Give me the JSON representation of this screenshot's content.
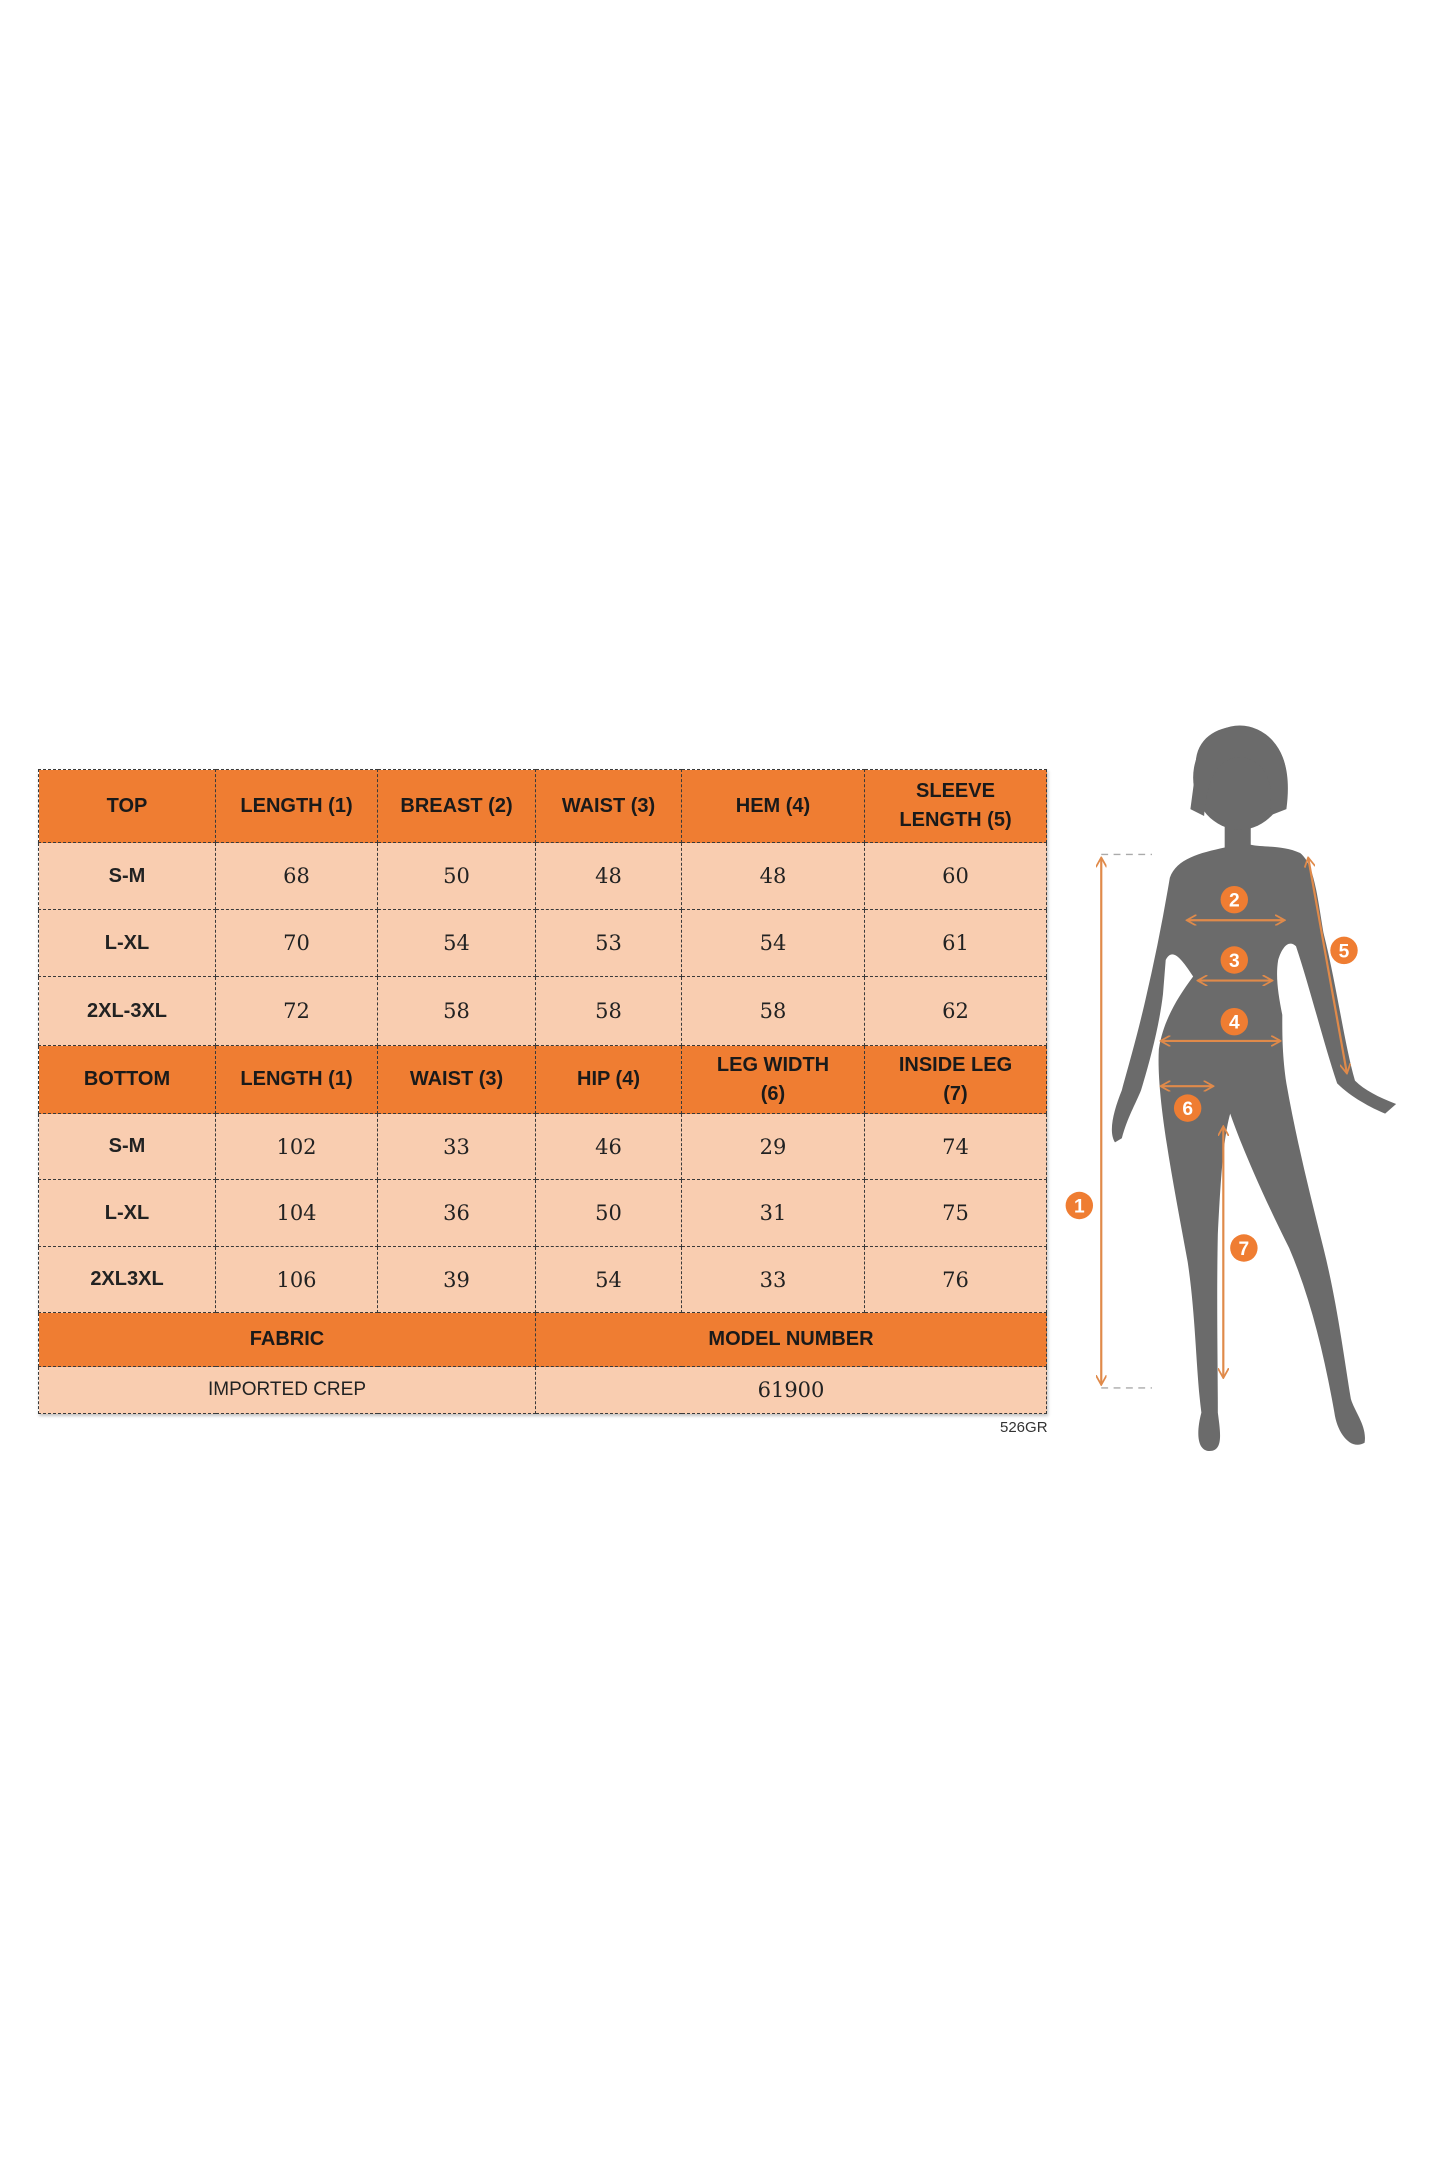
{
  "top_table": {
    "headers": [
      "TOP",
      "LENGTH (1)",
      "BREAST (2)",
      "WAIST (3)",
      "HEM (4)",
      "SLEEVE LENGTH (5)"
    ],
    "rows": [
      [
        "S-M",
        "68",
        "50",
        "48",
        "48",
        "60"
      ],
      [
        "L-XL",
        "70",
        "54",
        "53",
        "54",
        "61"
      ],
      [
        "2XL-3XL",
        "72",
        "58",
        "58",
        "58",
        "62"
      ]
    ]
  },
  "bottom_table": {
    "headers": [
      "BOTTOM",
      "LENGTH (1)",
      "WAIST (3)",
      "HIP (4)",
      "LEG WIDTH (6)",
      "INSIDE LEG (7)"
    ],
    "rows": [
      [
        "S-M",
        "102",
        "33",
        "46",
        "29",
        "74"
      ],
      [
        "L-XL",
        "104",
        "36",
        "50",
        "31",
        "75"
      ],
      [
        "2XL3XL",
        "106",
        "39",
        "54",
        "33",
        "76"
      ]
    ]
  },
  "info": {
    "fabric_label": "FABRIC",
    "fabric_value": "IMPORTED CREP",
    "model_label": "MODEL NUMBER",
    "model_value": "61900"
  },
  "code": "526GR",
  "figure": {
    "badges": [
      "1",
      "2",
      "3",
      "4",
      "5",
      "6",
      "7"
    ]
  },
  "colors": {
    "header_orange": "#ef7d32",
    "cell_peach": "#f9cdb0",
    "silhouette": "#6b6b6b",
    "arrow": "#e08a4a"
  }
}
